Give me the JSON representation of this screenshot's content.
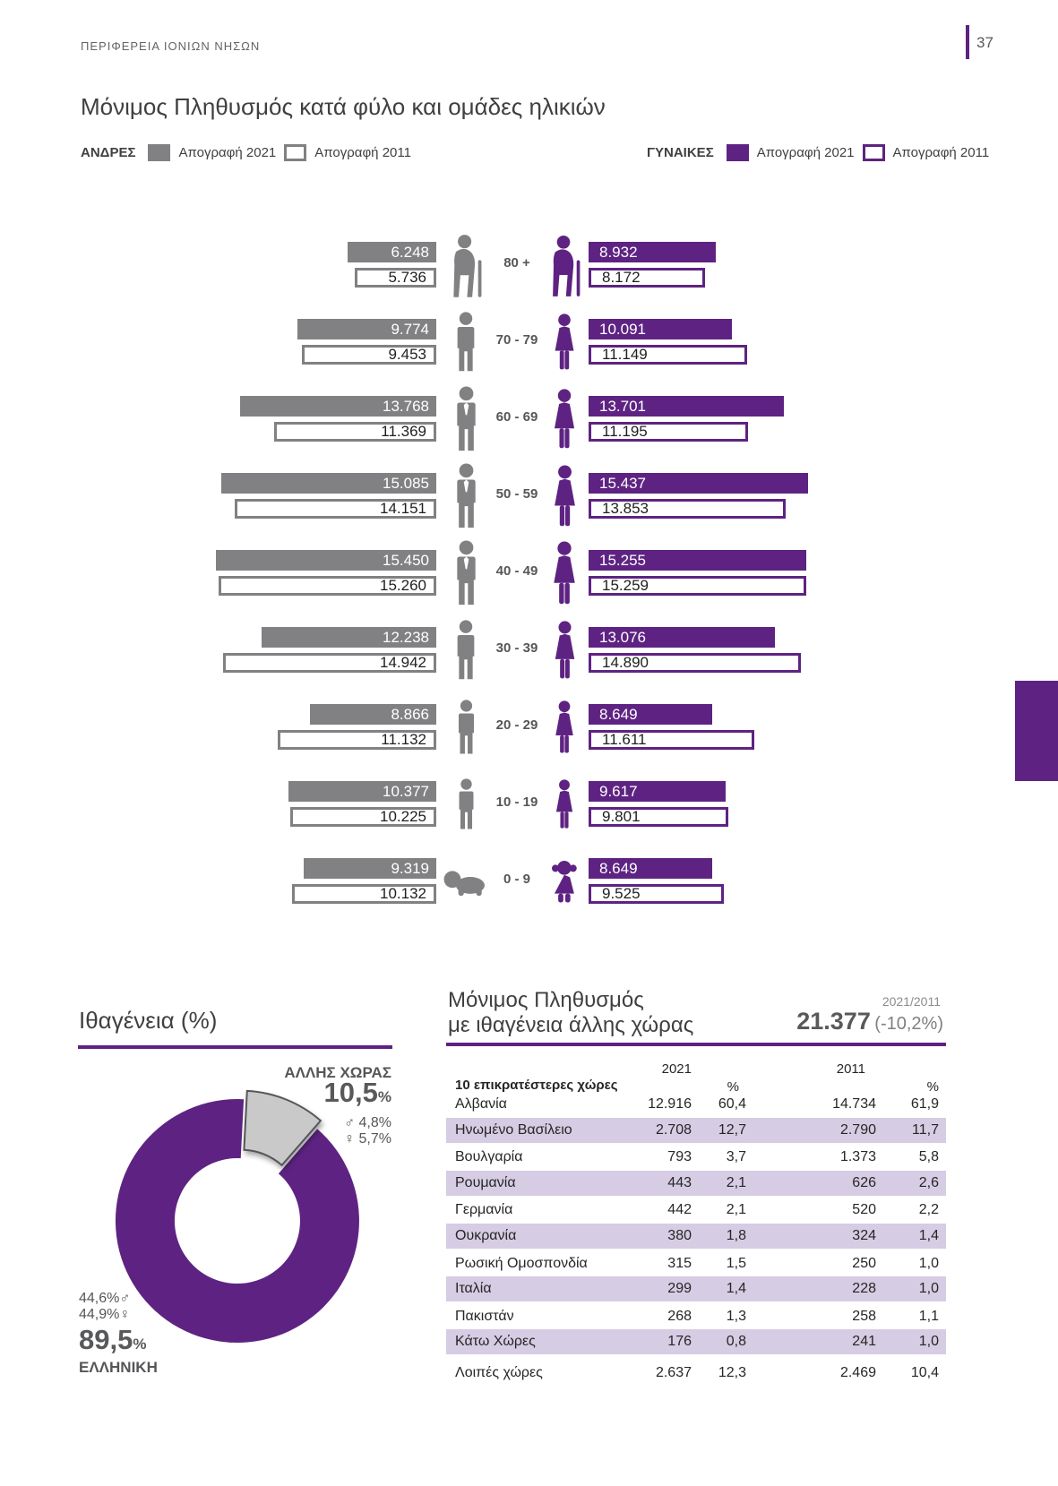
{
  "page": {
    "region_label": "ΠΕΡΙΦΕΡΕΙΑ ΙΟΝΙΩΝ ΝΗΣΩΝ",
    "number": "37"
  },
  "pyramid": {
    "title": "Μόνιμος Πληθυσμός κατά φύλο και ομάδες ηλικιών",
    "legend": {
      "men_label": "ΑΝΔΡΕΣ",
      "women_label": "ΓΥΝΑΙΚΕΣ",
      "census_2021": "Απογραφή 2021",
      "census_2011": "Απογραφή 2011"
    }
  },
  "chart_data": [
    {
      "type": "bar",
      "name": "population-pyramid",
      "title": "Μόνιμος Πληθυσμός κατά φύλο και ομάδες ηλικιών",
      "categories": [
        "80 +",
        "70 - 79",
        "60 - 69",
        "50 - 59",
        "40 - 49",
        "30 - 39",
        "20 - 29",
        "10 - 19",
        "0 - 9"
      ],
      "series": [
        {
          "name": "men_census_2021",
          "values": [
            6248,
            9774,
            13768,
            15085,
            15450,
            12238,
            8866,
            10377,
            9319
          ]
        },
        {
          "name": "men_census_2011",
          "values": [
            5736,
            9453,
            11369,
            14151,
            15260,
            14942,
            11132,
            10225,
            10132
          ]
        },
        {
          "name": "women_census_2021",
          "values": [
            8932,
            10091,
            13701,
            15437,
            15255,
            13076,
            8649,
            9617,
            8649
          ]
        },
        {
          "name": "women_census_2011",
          "values": [
            8172,
            11149,
            11195,
            13853,
            15259,
            14890,
            11611,
            9801,
            9525
          ]
        }
      ],
      "colors": {
        "men_fill": "#818183",
        "women_fill": "#5e2382",
        "census_2011_style": "outline"
      },
      "legend_position": "top"
    },
    {
      "type": "pie",
      "name": "citizenship-donut",
      "title": "Ιθαγένεια (%)",
      "slices": [
        {
          "label": "ΕΛΛΗΝΙΚΗ",
          "value": 89.5,
          "male_pct": 44.6,
          "female_pct": 44.9,
          "color": "#5e2382"
        },
        {
          "label": "ΑΛΛΗΣ ΧΩΡΑΣ",
          "value": 10.5,
          "male_pct": 4.8,
          "female_pct": 5.7,
          "color": "#c9c9ca"
        }
      ]
    }
  ],
  "citizenship": {
    "title": "Ιθαγένεια (%)",
    "male_symbol": "♂",
    "female_symbol": "♀",
    "other": {
      "label": "ΑΛΛΗΣ ΧΩΡΑΣ",
      "pct": "10,5",
      "pct_sign": "%",
      "male_pct": "4,8%",
      "female_pct": "5,7%"
    },
    "greek": {
      "label": "ΕΛΛΗΝΙΚΗ",
      "pct": "89,5",
      "pct_sign": "%",
      "male_pct": "44,6%",
      "female_pct": "44,9%"
    }
  },
  "foreign": {
    "title_line1": "Μόνιμος Πληθυσμός",
    "title_line2": "με ιθαγένεια άλλης χώρας",
    "period": "2021/2011",
    "total": "21.377",
    "change": "(-10,2%)",
    "table": {
      "countries_header": "10 επικρατέστερες χώρες",
      "col_2021": "2021",
      "col_pct1": "%",
      "col_2011": "2011",
      "col_pct2": "%",
      "rows": [
        [
          "Αλβανία",
          "12.916",
          "60,4",
          "14.734",
          "61,9"
        ],
        [
          "Ηνωμένο Βασίλειο",
          "2.708",
          "12,7",
          "2.790",
          "11,7"
        ],
        [
          "Βουλγαρία",
          "793",
          "3,7",
          "1.373",
          "5,8"
        ],
        [
          "Ρουμανία",
          "443",
          "2,1",
          "626",
          "2,6"
        ],
        [
          "Γερμανία",
          "442",
          "2,1",
          "520",
          "2,2"
        ],
        [
          "Ουκρανία",
          "380",
          "1,8",
          "324",
          "1,4"
        ],
        [
          "Ρωσική Ομοσπονδία",
          "315",
          "1,5",
          "250",
          "1,0"
        ],
        [
          "Ιταλία",
          "299",
          "1,4",
          "228",
          "1,0"
        ],
        [
          "Πακιστάν",
          "268",
          "1,3",
          "258",
          "1,1"
        ],
        [
          "Κάτω Χώρες",
          "176",
          "0,8",
          "241",
          "1,0"
        ],
        [
          "Λοιπές χώρες",
          "2.637",
          "12,3",
          "2.469",
          "10,4"
        ]
      ]
    }
  }
}
